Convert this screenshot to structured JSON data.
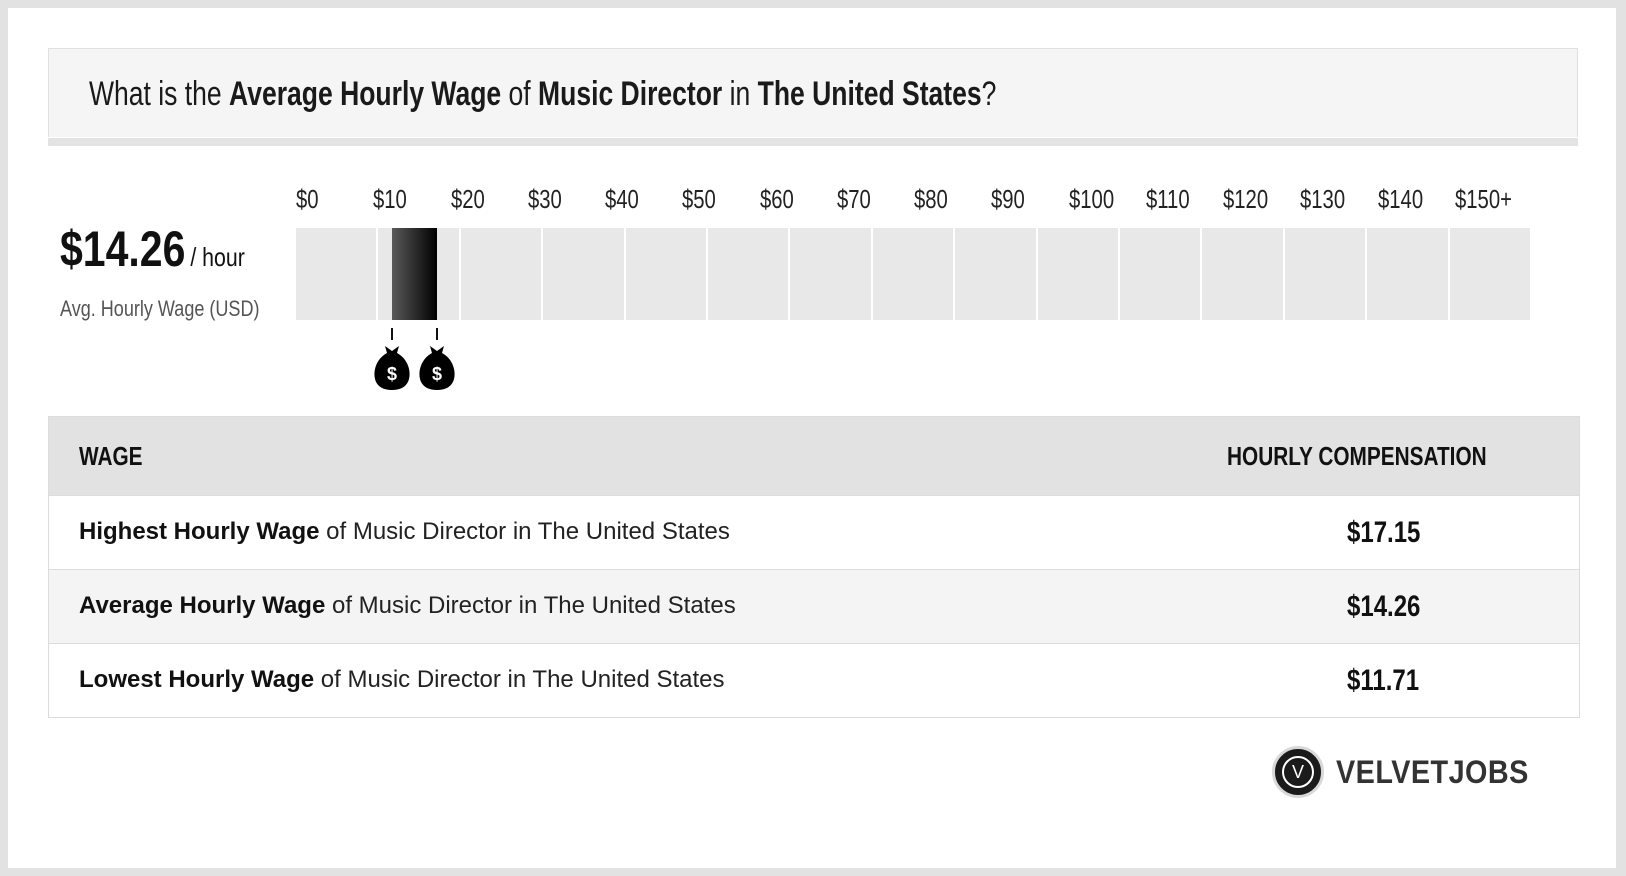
{
  "question": {
    "prefix": "What is the ",
    "metric": "Average Hourly Wage",
    "mid1": " of ",
    "job": "Music Director",
    "mid2": " in ",
    "location": "The United States",
    "suffix": "?"
  },
  "summary": {
    "value": "$14.26",
    "unit": "/ hour",
    "label": "Avg. Hourly Wage (USD)"
  },
  "chart_data": {
    "type": "bar",
    "orientation": "horizontal-range",
    "x_tick_labels": [
      "$0",
      "$10",
      "$20",
      "$30",
      "$40",
      "$50",
      "$60",
      "$70",
      "$80",
      "$90",
      "$100",
      "$110",
      "$120",
      "$130",
      "$140",
      "$150+"
    ],
    "xlim": [
      0,
      160
    ],
    "range": {
      "low": 11.71,
      "high": 17.15
    },
    "average": 14.26,
    "marker_icons": [
      "money-bag-icon",
      "money-bag-icon"
    ],
    "colors": {
      "track": "#e8e8e8",
      "bar_start": "#5a5a5a",
      "bar_end": "#000000"
    }
  },
  "table": {
    "headers": {
      "wage": "WAGE",
      "comp": "HOURLY COMPENSATION"
    },
    "rows": [
      {
        "bold": "Highest Hourly Wage",
        "rest": " of Music Director in The United States",
        "value": "$17.15"
      },
      {
        "bold": "Average Hourly Wage",
        "rest": " of Music Director in The United States",
        "value": "$14.26"
      },
      {
        "bold": "Lowest Hourly Wage",
        "rest": " of Music Director in The United States",
        "value": "$11.71"
      }
    ]
  },
  "brand": {
    "logo_letter": "V",
    "name": "VELVETJOBS"
  }
}
